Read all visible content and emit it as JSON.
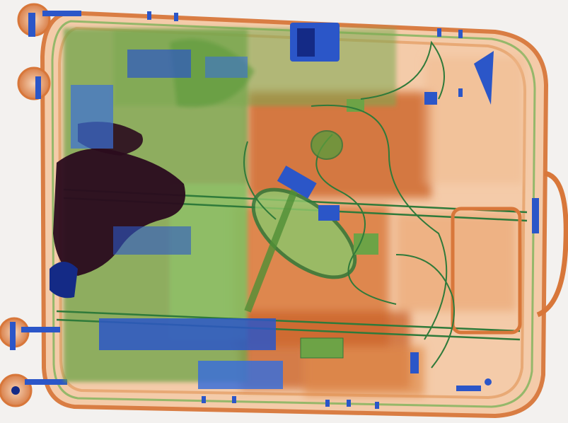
{
  "scan": {
    "background": "#f3f1ef",
    "colors": {
      "organic": "#d8773a",
      "organic_dense": "#b9541e",
      "organic_light": "#f0b98e",
      "mixed": "#5c9a3c",
      "mixed_light": "#8fc46a",
      "inorganic": "#2b56c8",
      "inorganic_dense": "#142a86",
      "very_dense": "#2a0b1e"
    },
    "objects": [
      "suitcase-shell",
      "suitcase-wheel",
      "telescopic-handle",
      "carry-handle",
      "electronics-cluster",
      "oval-case",
      "cable-bundle",
      "circuit-board",
      "lock-clasp"
    ]
  }
}
